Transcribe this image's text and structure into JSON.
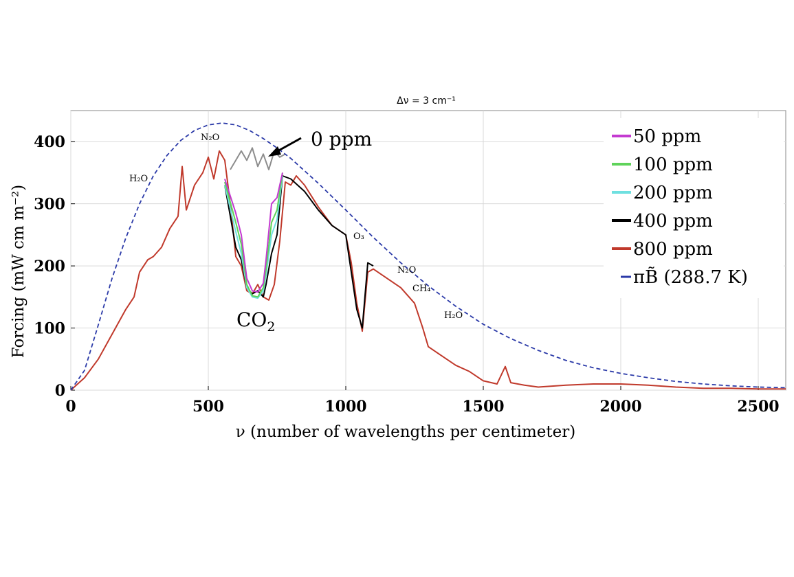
{
  "chart_data": {
    "type": "line",
    "title": "Δν =  3 cm⁻¹",
    "xlabel": "ν (number of wavelengths per centimeter)",
    "ylabel": "Forcing (mW cm m⁻²)",
    "xlim": [
      0,
      2600
    ],
    "ylim": [
      0,
      450
    ],
    "xticks": [
      0,
      500,
      1000,
      1500,
      2000,
      2500
    ],
    "yticks": [
      0,
      100,
      200,
      300,
      400
    ],
    "grid": true,
    "legend_position": "top-right",
    "annotations": {
      "zero_ppm": "0 ppm",
      "co2": "CO",
      "co2_sub": "2",
      "h2o_left": "H₂O",
      "n2o_top": "N₂O",
      "o3": "O₃",
      "n2o_right": "N₂O",
      "ch4": "CH₄",
      "h2o_right": "H₂O"
    },
    "series": [
      {
        "name": "50 ppm",
        "color": "#c43ad1",
        "style": "solid",
        "x": [
          560,
          600,
          620,
          640,
          660,
          680,
          700,
          710,
          730,
          750,
          770
        ],
        "y": [
          340,
          285,
          250,
          180,
          160,
          158,
          172,
          210,
          300,
          310,
          350
        ]
      },
      {
        "name": "100 ppm",
        "color": "#5fd35a",
        "style": "solid",
        "x": [
          560,
          600,
          620,
          640,
          660,
          680,
          700,
          710,
          730,
          750,
          770
        ],
        "y": [
          335,
          270,
          235,
          170,
          152,
          150,
          165,
          195,
          270,
          290,
          350
        ]
      },
      {
        "name": "200 ppm",
        "color": "#6fe0e0",
        "style": "solid",
        "x": [
          560,
          600,
          620,
          640,
          660,
          680,
          700,
          710,
          730,
          750,
          770
        ],
        "y": [
          330,
          255,
          220,
          165,
          150,
          148,
          160,
          185,
          250,
          275,
          345
        ]
      },
      {
        "name": "400 ppm",
        "color": "#000000",
        "style": "solid",
        "x": [
          560,
          600,
          620,
          640,
          660,
          680,
          700,
          710,
          730,
          750,
          770,
          800,
          850,
          900,
          950,
          1000,
          1040,
          1060,
          1080,
          1100
        ],
        "y": [
          330,
          230,
          210,
          165,
          155,
          160,
          150,
          170,
          220,
          250,
          345,
          340,
          320,
          290,
          265,
          250,
          130,
          100,
          205,
          200
        ]
      },
      {
        "name": "800 ppm",
        "color": "#c0392b",
        "style": "solid",
        "x": [
          0,
          50,
          100,
          150,
          200,
          230,
          250,
          280,
          300,
          330,
          360,
          390,
          405,
          420,
          450,
          480,
          500,
          520,
          540,
          560,
          580,
          600,
          620,
          640,
          660,
          680,
          700,
          720,
          740,
          760,
          780,
          800,
          820,
          850,
          900,
          950,
          1000,
          1020,
          1040,
          1060,
          1080,
          1100,
          1150,
          1200,
          1250,
          1280,
          1300,
          1350,
          1400,
          1450,
          1500,
          1550,
          1580,
          1600,
          1650,
          1700,
          1800,
          1900,
          2000,
          2100,
          2200,
          2300,
          2400,
          2500,
          2600
        ],
        "y": [
          0,
          20,
          50,
          90,
          130,
          150,
          190,
          210,
          215,
          230,
          260,
          280,
          360,
          290,
          330,
          350,
          375,
          340,
          385,
          370,
          300,
          215,
          200,
          160,
          155,
          170,
          150,
          145,
          170,
          240,
          335,
          330,
          345,
          330,
          295,
          265,
          250,
          205,
          140,
          95,
          190,
          195,
          180,
          165,
          140,
          100,
          70,
          55,
          40,
          30,
          15,
          10,
          38,
          12,
          8,
          5,
          8,
          10,
          10,
          8,
          5,
          3,
          3,
          2,
          2
        ]
      },
      {
        "name": "0 ppm",
        "color": "#8c8c8c",
        "style": "solid",
        "x": [
          580,
          600,
          620,
          640,
          660,
          680,
          700,
          720,
          740,
          760,
          780
        ],
        "y": [
          355,
          370,
          385,
          370,
          390,
          360,
          380,
          355,
          385,
          375,
          380
        ]
      },
      {
        "name": "πB̃ (288.7 K)",
        "color": "#2b3aa8",
        "style": "dashed",
        "x": [
          0,
          50,
          100,
          150,
          200,
          250,
          300,
          350,
          400,
          450,
          500,
          550,
          600,
          650,
          700,
          750,
          800,
          900,
          1000,
          1100,
          1200,
          1300,
          1400,
          1500,
          1600,
          1700,
          1800,
          1900,
          2000,
          2100,
          2200,
          2300,
          2400,
          2500,
          2600
        ],
        "y": [
          0,
          32,
          105,
          180,
          245,
          300,
          345,
          378,
          402,
          418,
          427,
          430,
          427,
          418,
          405,
          390,
          373,
          333,
          290,
          246,
          205,
          168,
          135,
          106,
          83,
          64,
          48,
          36,
          27,
          20,
          14,
          10,
          7,
          5,
          4
        ]
      }
    ],
    "legend": [
      {
        "label": "50 ppm",
        "color": "#c43ad1",
        "style": "solid"
      },
      {
        "label": "100 ppm",
        "color": "#5fd35a",
        "style": "solid"
      },
      {
        "label": "200 ppm",
        "color": "#6fe0e0",
        "style": "solid"
      },
      {
        "label": "400 ppm",
        "color": "#000000",
        "style": "solid"
      },
      {
        "label": "800 ppm",
        "color": "#c0392b",
        "style": "solid"
      },
      {
        "label": "πB̃ (288.7 K)",
        "color": "#2b3aa8",
        "style": "dashed"
      }
    ]
  }
}
